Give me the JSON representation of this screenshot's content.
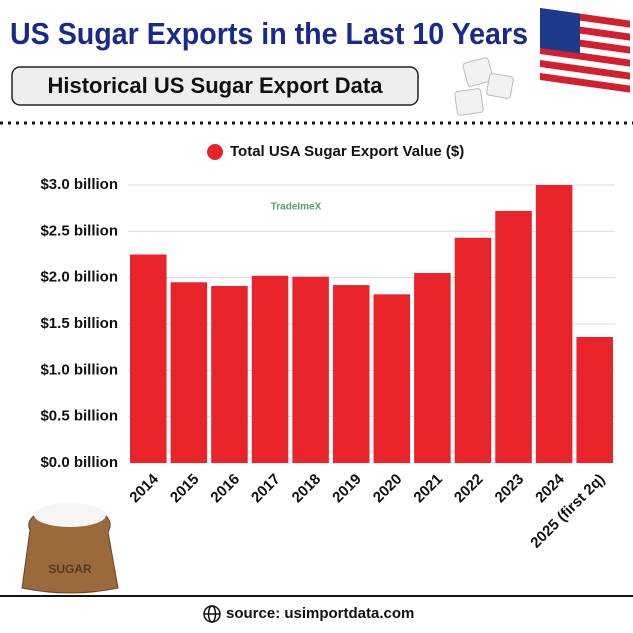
{
  "chart_data": {
    "type": "bar",
    "title": "US Sugar Exports in the Last 10 Years",
    "subtitle": "Historical US Sugar Export Data",
    "watermark": "TradeImeX",
    "image_text": "SUGAR",
    "source": "source: usimportdata.com",
    "series": [
      {
        "name": "Total USA Sugar Export Value ($)",
        "color": "#e8232a",
        "values": [
          2.25,
          1.95,
          1.91,
          2.02,
          2.01,
          1.92,
          1.82,
          2.05,
          2.43,
          2.72,
          3.0,
          1.36
        ]
      }
    ],
    "categories": [
      "2014",
      "2015",
      "2016",
      "2017",
      "2018",
      "2019",
      "2020",
      "2021",
      "2022",
      "2023",
      "2024",
      "2025 (first 2q)"
    ],
    "ylim": [
      0,
      3
    ],
    "yticks": [
      {
        "value": 0,
        "label": "$0.0 billion"
      },
      {
        "value": 0.5,
        "label": "$0.5 billion"
      },
      {
        "value": 1,
        "label": "$1.0 billion"
      },
      {
        "value": 1.5,
        "label": "$1.5 billion"
      },
      {
        "value": 2,
        "label": "$2.0 billion"
      },
      {
        "value": 2.5,
        "label": "$2.5 billion"
      },
      {
        "value": 3,
        "label": "$3.0 billion"
      }
    ],
    "grid": true
  }
}
